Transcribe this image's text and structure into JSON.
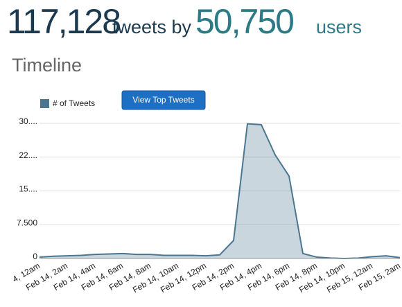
{
  "header": {
    "tweet_count": "117,128",
    "tweets_by": "tweets by",
    "user_count": "50,750",
    "users": "users"
  },
  "section_title": "Timeline",
  "button": "View Top Tweets",
  "chart_data": {
    "type": "area",
    "categories": [
      "4, 12am",
      null,
      "Feb 14, 2am",
      null,
      "Feb 14, 4am",
      null,
      "Feb 14, 6am",
      null,
      "Feb 14, 8am",
      null,
      "Feb 14, 10am",
      null,
      "Feb 14, 12pm",
      null,
      "Feb 14, 2pm",
      null,
      "Feb 14, 4pm",
      null,
      "Feb 14, 6pm",
      null,
      "Feb 14, 8pm",
      null,
      "Feb 14, 10pm",
      null,
      "Feb 15, 12am",
      null,
      "Feb 15, 2am"
    ],
    "series": [
      {
        "name": "# of Tweets",
        "color": "#4b7690",
        "values": [
          300,
          500,
          600,
          700,
          900,
          1000,
          1100,
          900,
          900,
          700,
          700,
          700,
          600,
          800,
          4000,
          29900,
          29700,
          23000,
          18300,
          1100,
          300,
          100,
          0,
          100,
          400,
          600,
          200
        ]
      }
    ],
    "ylim": [
      0,
      30000
    ],
    "yticks": [
      0,
      {
        "value": 7500,
        "label": "7.500"
      },
      {
        "value": 15000,
        "label": "15...."
      },
      {
        "value": 22500,
        "label": "22...."
      },
      {
        "value": 30000,
        "label": "30...."
      }
    ],
    "grid": true
  }
}
